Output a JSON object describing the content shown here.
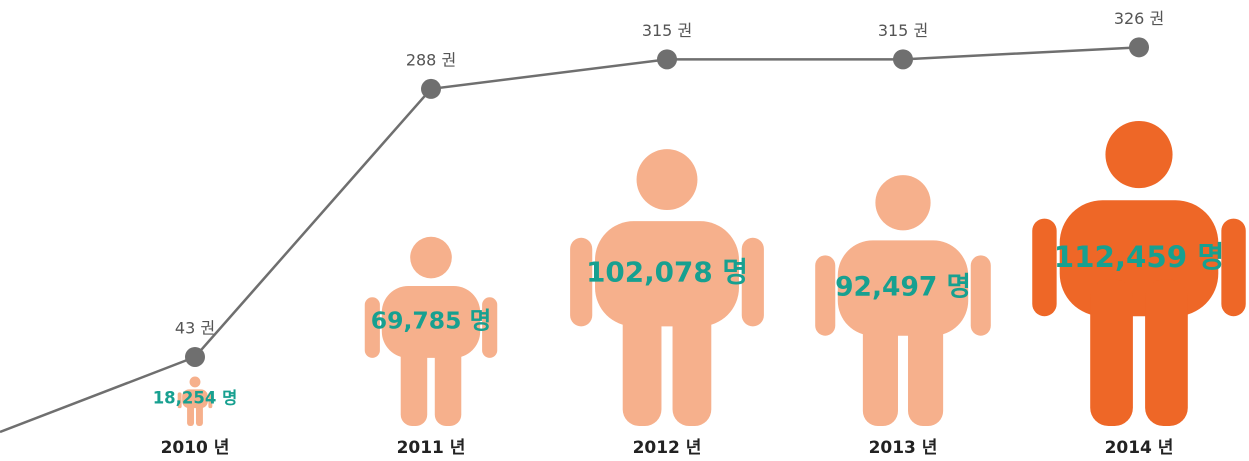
{
  "chart_data": {
    "type": "line",
    "categories": [
      "2010 년",
      "2011 년",
      "2012 년",
      "2013 년",
      "2014 년"
    ],
    "ylim": [
      0,
      340
    ],
    "series": [
      {
        "values": [
          43,
          288,
          315,
          315,
          326
        ],
        "value_labels": [
          "43 권",
          "288 권",
          "315 권",
          "315 권",
          "326 권"
        ],
        "color": "#6f6f6f"
      },
      {
        "values": [
          18254,
          69785,
          102078,
          92497,
          112459
        ],
        "value_labels": [
          "18,254 명",
          "69,785 명",
          "102,078 명",
          "92,497 명",
          "112,459 명"
        ],
        "marker": "person",
        "colors": [
          "#f6b08c",
          "#f6b08c",
          "#f6b08c",
          "#f6b08c",
          "#ee6727"
        ],
        "label_color": "#17a090"
      }
    ]
  }
}
